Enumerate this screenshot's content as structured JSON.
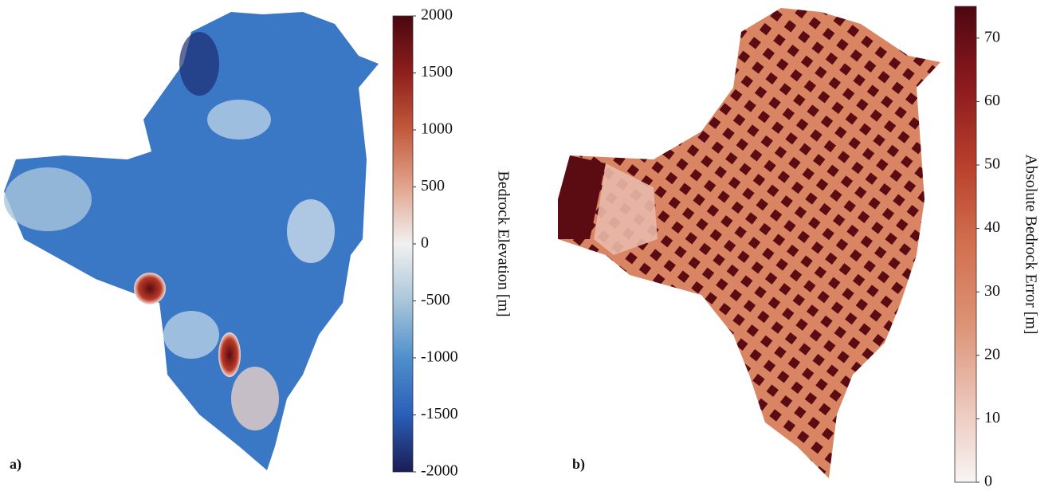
{
  "panels": [
    {
      "label": "a)",
      "colorbar": {
        "label": "Bedrock Elevation [m]",
        "lim": [
          -2000,
          2000
        ],
        "ticks": [
          -2000,
          -1500,
          -1000,
          -500,
          0,
          500,
          1000,
          1500,
          2000
        ],
        "colors": [
          "#1a1c55",
          "#2a5fb8",
          "#4f8fcc",
          "#a9c6db",
          "#f1f1f1",
          "#e2a48e",
          "#c35a3c",
          "#8e1f1c",
          "#4a0710"
        ]
      }
    },
    {
      "label": "b)",
      "colorbar": {
        "label": "Absolute Bedrock Error [m]",
        "lim": [
          0,
          75
        ],
        "ticks": [
          0,
          10,
          20,
          30,
          40,
          50,
          60,
          70
        ],
        "colors": [
          "#f8f4f4",
          "#ecc4b8",
          "#dc9275",
          "#d2704f",
          "#b8402c",
          "#8c1a1e",
          "#4e0710"
        ]
      }
    }
  ]
}
